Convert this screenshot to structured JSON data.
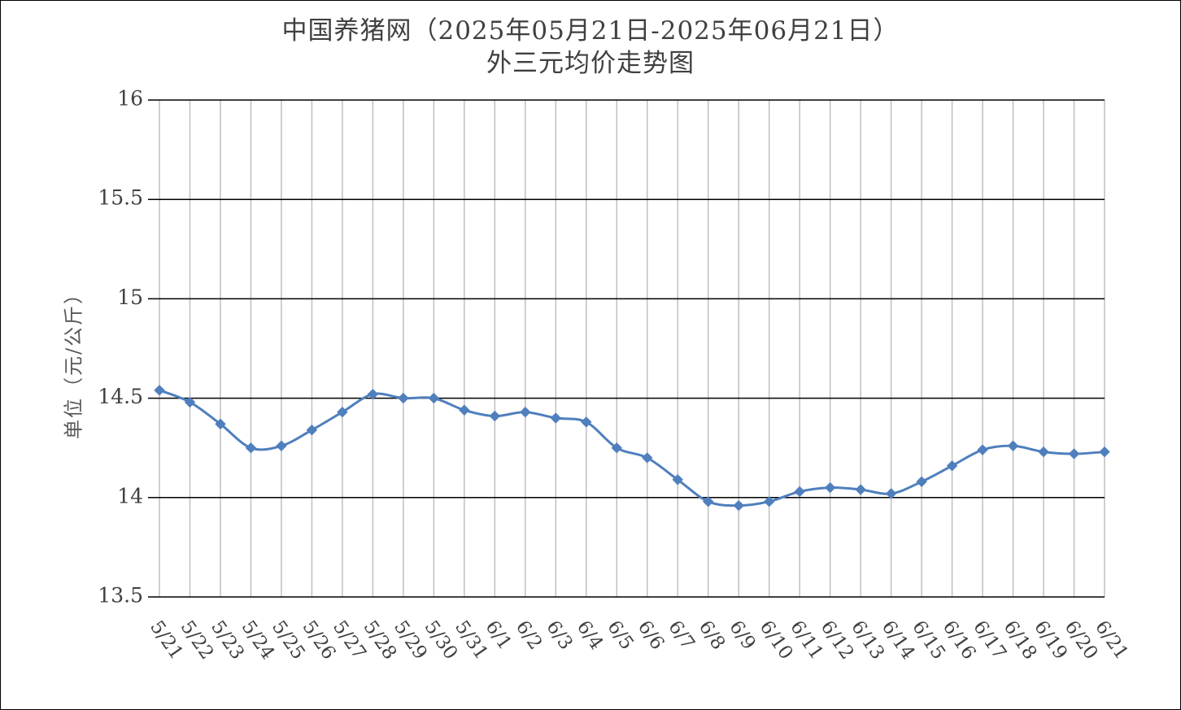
{
  "chart_data": {
    "type": "line",
    "title": "中国养猪网（2025年05月21日-2025年06月21日）",
    "subtitle": "外三元均价走势图",
    "xlabel": "",
    "ylabel": "单位（元/公斤）",
    "ylim": [
      13.5,
      16
    ],
    "yticks": [
      "13.5",
      "14",
      "14.5",
      "15",
      "15.5",
      "16"
    ],
    "grid": true,
    "legend": "none",
    "categories": [
      "5/21",
      "5/22",
      "5/23",
      "5/24",
      "5/25",
      "5/26",
      "5/27",
      "5/28",
      "5/29",
      "5/30",
      "5/31",
      "6/1",
      "6/2",
      "6/3",
      "6/4",
      "6/5",
      "6/6",
      "6/7",
      "6/8",
      "6/9",
      "6/10",
      "6/11",
      "6/12",
      "6/13",
      "6/14",
      "6/15",
      "6/16",
      "6/17",
      "6/18",
      "6/19",
      "6/20",
      "6/21"
    ],
    "values": [
      14.54,
      14.48,
      14.37,
      14.25,
      14.26,
      14.34,
      14.43,
      14.52,
      14.5,
      14.5,
      14.44,
      14.41,
      14.43,
      14.4,
      14.38,
      14.25,
      14.2,
      14.09,
      13.98,
      13.96,
      13.98,
      14.03,
      14.05,
      14.04,
      14.02,
      14.08,
      14.16,
      14.24,
      14.26,
      14.23,
      14.22,
      14.23
    ],
    "line_color": "#4F7FBD",
    "grid_color": "#000000",
    "vgrid_color": "#BFBFBF"
  }
}
